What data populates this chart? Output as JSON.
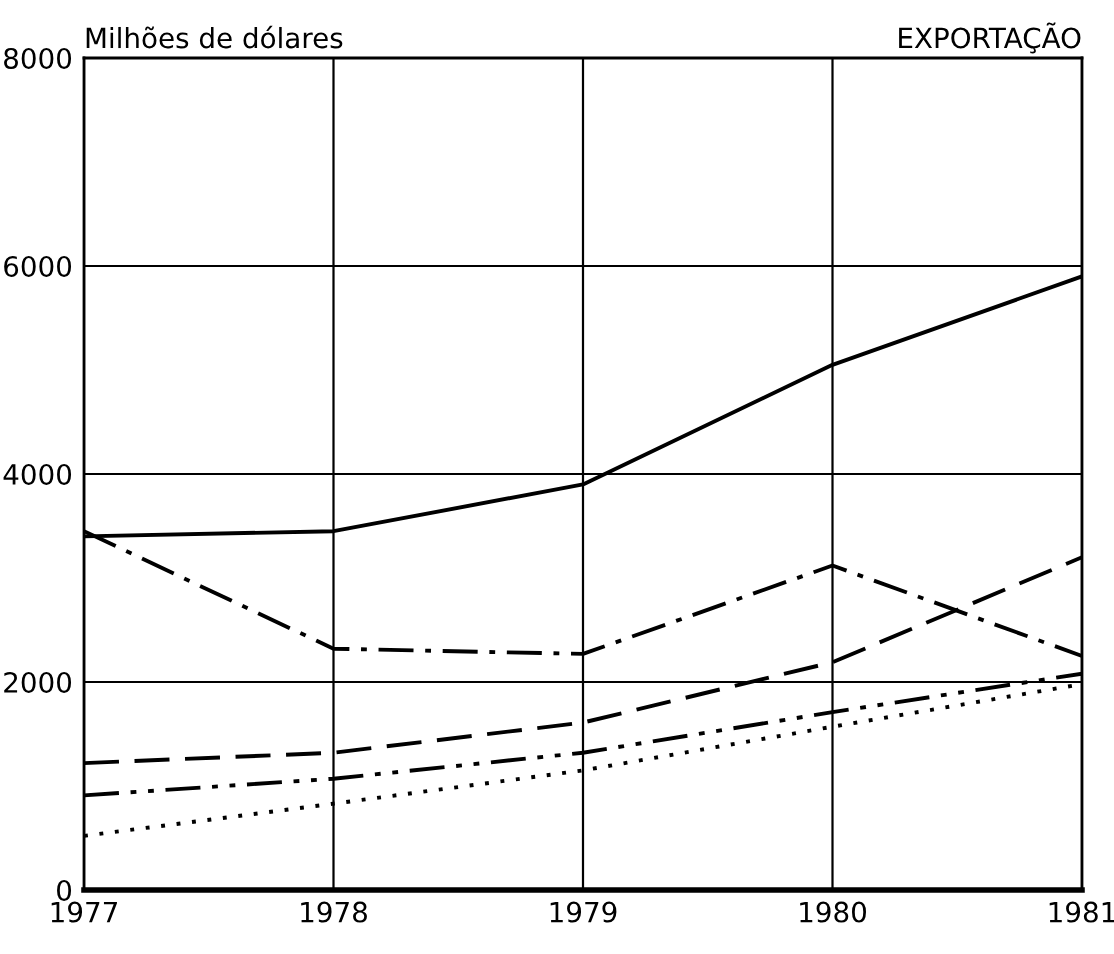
{
  "chart_data": {
    "type": "line",
    "title": "EXPORTAÇÃO",
    "ylabel": "Milhões de dólares",
    "x": [
      1977,
      1978,
      1979,
      1980,
      1981
    ],
    "series": [
      {
        "color": "#000000",
        "line_style": "solid",
        "values": [
          3400,
          3450,
          3900,
          5050,
          5900
        ]
      },
      {
        "color": "#000000",
        "line_style": "dashdot",
        "values": [
          3450,
          2320,
          2270,
          3120,
          2250
        ]
      },
      {
        "color": "#000000",
        "line_style": "dashed",
        "values": [
          1220,
          1320,
          1610,
          2190,
          3200
        ]
      },
      {
        "color": "#000000",
        "line_style": "dashdotdot",
        "values": [
          910,
          1070,
          1320,
          1710,
          2080
        ]
      },
      {
        "color": "#000000",
        "line_style": "dotted",
        "values": [
          520,
          830,
          1150,
          1570,
          1980
        ]
      }
    ],
    "xlim": [
      1977,
      1981
    ],
    "xticks": [
      1977,
      1978,
      1979,
      1980,
      1981
    ],
    "ylim": [
      0,
      8000
    ],
    "yticks": [
      0,
      2000,
      4000,
      6000,
      8000
    ],
    "grid": true,
    "marker": "none"
  }
}
